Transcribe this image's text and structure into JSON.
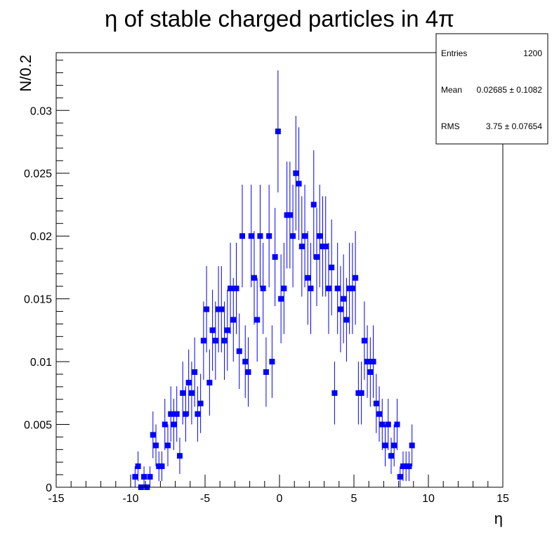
{
  "chart_data": {
    "type": "scatter",
    "title": "η of stable charged particles in 4π",
    "xlabel": "η",
    "ylabel": "N/0.2",
    "xlim": [
      -15,
      15
    ],
    "ylim": [
      0,
      0.0346
    ],
    "xticks": [
      -15,
      -10,
      -5,
      0,
      5,
      10,
      15
    ],
    "xtick_labels": [
      "-15",
      "-10",
      "-5",
      "0",
      "5",
      "10",
      "15"
    ],
    "yticks": [
      0,
      0.005,
      0.01,
      0.015,
      0.02,
      0.025,
      0.03
    ],
    "ytick_labels": [
      "0",
      "0.005",
      "0.01",
      "0.015",
      "0.02",
      "0.025",
      "0.03"
    ],
    "x_minor_step": 1,
    "y_minor_step": 0.001,
    "grid": false,
    "legend": "none",
    "marker_color": "#0000ff",
    "series": [
      {
        "x": [
          -9.7,
          -9.5,
          -9.3,
          -9.1,
          -8.9,
          -8.7,
          -8.5,
          -8.3,
          -8.1,
          -7.9,
          -7.7,
          -7.5,
          -7.3,
          -7.1,
          -6.9,
          -6.7,
          -6.5,
          -6.3,
          -6.1,
          -5.9,
          -5.7,
          -5.5,
          -5.3,
          -5.1,
          -4.9,
          -4.7,
          -4.5,
          -4.3,
          -4.1,
          -3.9,
          -3.7,
          -3.5,
          -3.3,
          -3.1,
          -2.9,
          -2.7,
          -2.5,
          -2.3,
          -2.1,
          -1.9,
          -1.7,
          -1.5,
          -1.3,
          -1.1,
          -0.9,
          -0.7,
          -0.5,
          -0.3,
          -0.1,
          0.1,
          0.3,
          0.5,
          0.7,
          0.9,
          1.1,
          1.3,
          1.5,
          1.7,
          1.9,
          2.1,
          2.3,
          2.5,
          2.7,
          2.9,
          3.1,
          3.3,
          3.5,
          3.7,
          3.9,
          4.1,
          4.3,
          4.5,
          4.7,
          4.9,
          5.1,
          5.3,
          5.5,
          5.7,
          5.9,
          6.1,
          6.3,
          6.5,
          6.7,
          6.9,
          7.1,
          7.3,
          7.5,
          7.7,
          7.9,
          8.1,
          8.3,
          8.5,
          8.7,
          8.9
        ],
        "y": [
          0.00083,
          0.00167,
          0,
          0.00083,
          0,
          0.00083,
          0.00417,
          0.00333,
          0.00167,
          0.00167,
          0.005,
          0.00333,
          0.00583,
          0.005,
          0.00583,
          0.0025,
          0.0075,
          0.00583,
          0.00833,
          0.0075,
          0.00917,
          0.00583,
          0.00667,
          0.01167,
          0.01417,
          0.00833,
          0.0125,
          0.01167,
          0.01417,
          0.01417,
          0.01167,
          0.0125,
          0.01583,
          0.01333,
          0.01583,
          0.01083,
          0.02,
          0.01,
          0.00917,
          0.02,
          0.01667,
          0.01333,
          0.02,
          0.01583,
          0.00917,
          0.02,
          0.01,
          0.01833,
          0.02833,
          0.015,
          0.01583,
          0.02167,
          0.02167,
          0.02,
          0.025,
          0.02417,
          0.01917,
          0.02,
          0.01667,
          0.01583,
          0.0225,
          0.01833,
          0.02,
          0.01917,
          0.01917,
          0.01583,
          0.0175,
          0.0075,
          0.01583,
          0.01417,
          0.015,
          0.01333,
          0.01583,
          0.01583,
          0.01667,
          0.0075,
          0.0075,
          0.01167,
          0.01,
          0.00917,
          0.01,
          0.00667,
          0.00583,
          0.005,
          0.00333,
          0.005,
          0.0025,
          0.00333,
          0.005,
          0.00083,
          0.00167,
          0.00167,
          0.00167,
          0.00333
        ]
      }
    ]
  },
  "stats_box": {
    "rows": [
      {
        "label": "Entries",
        "value": "1200"
      },
      {
        "label": "Mean",
        "value": "0.02685 ± 0.1082"
      },
      {
        "label": "RMS",
        "value": "3.75 ± 0.07654"
      }
    ]
  }
}
